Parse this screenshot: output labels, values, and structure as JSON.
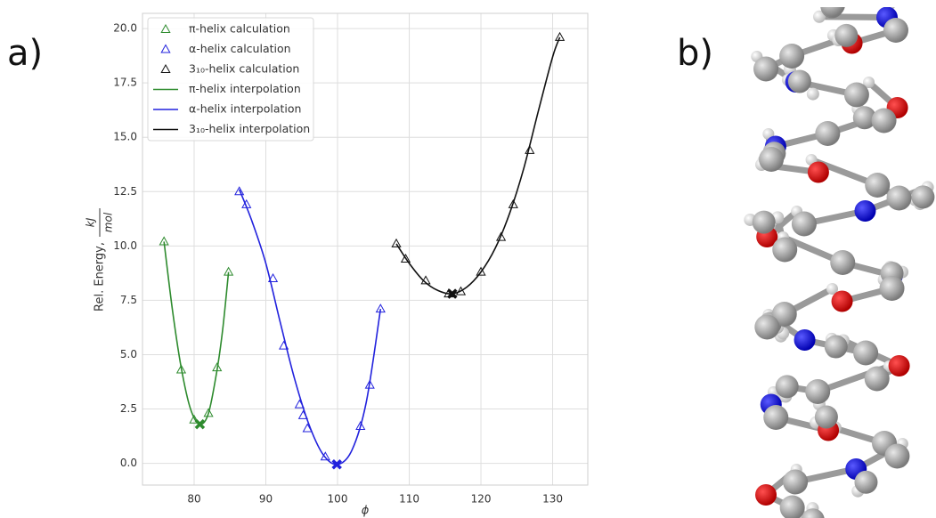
{
  "panel_a_label": "a)",
  "panel_b_label": "b)",
  "chart_data": {
    "type": "line",
    "xlabel": "ϕ",
    "ylabel": "Rel. Energy,",
    "ylabel_numerator": "kJ",
    "ylabel_denominator": "mol",
    "xlim": [
      72.8,
      134.9
    ],
    "ylim": [
      -1.0,
      20.7
    ],
    "xticks": [
      80,
      90,
      100,
      110,
      120,
      130
    ],
    "yticks": [
      {
        "value": 0,
        "label": "0.0"
      },
      {
        "value": 2.5,
        "label": "2.5"
      },
      {
        "value": 5,
        "label": "5.0"
      },
      {
        "value": 7.5,
        "label": "7.5"
      },
      {
        "value": 10,
        "label": "10.0"
      },
      {
        "value": 12.5,
        "label": "12.5"
      },
      {
        "value": 15,
        "label": "15.0"
      },
      {
        "value": 17.5,
        "label": "17.5"
      },
      {
        "value": 20,
        "label": "20.0"
      }
    ],
    "grid": true,
    "legend": "upper left",
    "series": [
      {
        "name": "π-helix calculation",
        "style": "markers",
        "color": "#2e8b2e",
        "x": [
          75.8,
          78.2,
          80,
          82,
          83.2,
          84.8
        ],
        "values": [
          10.2,
          4.3,
          2.0,
          2.3,
          4.4,
          8.8
        ]
      },
      {
        "name": "α-helix calculation",
        "style": "markers",
        "color": "#2222dd",
        "x": [
          86.3,
          87.3,
          91,
          92.5,
          94.7,
          95.2,
          95.8,
          98.3,
          103.2,
          104.5,
          106
        ],
        "values": [
          12.5,
          11.9,
          8.5,
          5.4,
          2.7,
          2.2,
          1.6,
          0.3,
          1.7,
          3.6,
          7.1
        ]
      },
      {
        "name": "3₁₀-helix calculation",
        "style": "markers",
        "color": "#111111",
        "x": [
          108.2,
          109.5,
          112.3,
          115.5,
          117.2,
          120,
          122.8,
          124.5,
          126.8,
          131
        ],
        "values": [
          10.1,
          9.4,
          8.4,
          7.8,
          7.9,
          8.8,
          10.4,
          11.9,
          14.4,
          19.6
        ]
      },
      {
        "name": "π-helix interpolation",
        "style": "line",
        "color": "#2e8b2e",
        "x": [
          75.8,
          77,
          78.2,
          79.5,
          80.8,
          82,
          83.2,
          84,
          84.8
        ],
        "values": [
          10.2,
          7.0,
          4.4,
          2.5,
          1.8,
          2.3,
          4.3,
          6.2,
          8.8
        ]
      },
      {
        "name": "α-helix interpolation",
        "style": "line",
        "color": "#2222dd",
        "x": [
          86.3,
          88,
          90,
          92,
          94,
          96,
          98,
          100,
          102,
          104,
          106
        ],
        "values": [
          12.6,
          11.2,
          9.2,
          6.5,
          3.9,
          1.8,
          0.4,
          -0.05,
          0.6,
          2.8,
          7.1
        ]
      },
      {
        "name": "3₁₀-helix interpolation",
        "style": "line",
        "color": "#111111",
        "x": [
          108.2,
          110,
          112,
          114,
          116,
          118,
          120,
          122,
          124,
          126,
          128,
          130,
          131
        ],
        "values": [
          10.1,
          9.2,
          8.4,
          7.95,
          7.8,
          8.1,
          8.8,
          9.9,
          11.5,
          13.6,
          16.2,
          18.7,
          19.6
        ]
      }
    ],
    "minima": [
      {
        "color": "#2e8b2e",
        "x": 80.8,
        "value": 1.8
      },
      {
        "color": "#2222dd",
        "x": 99.9,
        "value": -0.05
      },
      {
        "color": "#111111",
        "x": 116,
        "value": 7.8
      }
    ]
  }
}
